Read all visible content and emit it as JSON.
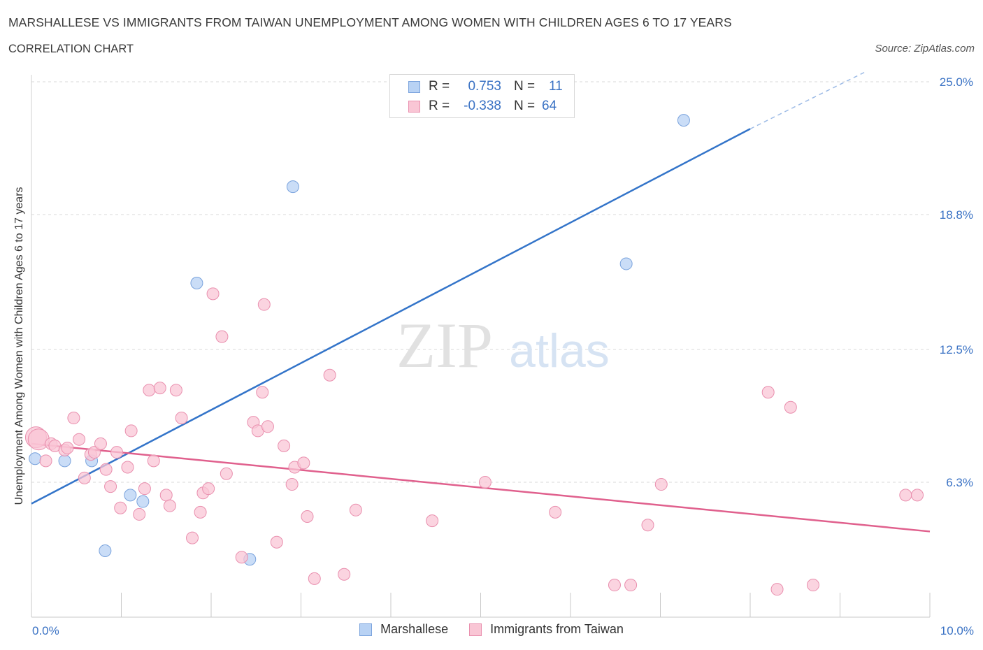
{
  "title": "MARSHALLESE VS IMMIGRANTS FROM TAIWAN UNEMPLOYMENT AMONG WOMEN WITH CHILDREN AGES 6 TO 17 YEARS",
  "subtitle": "CORRELATION CHART",
  "source": "Source: ZipAtlas.com",
  "watermark": {
    "zip": "ZIP",
    "atlas": "atlas"
  },
  "legend_box": {
    "rows": [
      {
        "r_label": "R =",
        "r_value": "0.753",
        "n_label": "N =",
        "n_value": "11",
        "color": "#b8d2f4",
        "border": "#7aa3dd"
      },
      {
        "r_label": "R =",
        "r_value": "-0.338",
        "n_label": "N =",
        "n_value": "64",
        "color": "#f9c6d5",
        "border": "#e98fae"
      }
    ]
  },
  "chart_data": {
    "type": "scatter",
    "ylabel": "Unemployment Among Women with Children Ages 6 to 17 years",
    "x_tick_labels": [
      "0.0%",
      "10.0%"
    ],
    "y_tick_labels": [
      "6.3%",
      "12.5%",
      "18.8%",
      "25.0%"
    ],
    "y_ticks": [
      6.3,
      12.5,
      18.8,
      25.0
    ],
    "xlim": [
      0,
      10
    ],
    "ylim": [
      0,
      25
    ],
    "grid": "horizontal dashed",
    "legend": "bottom-center",
    "series": [
      {
        "name": "Marshallese",
        "color": "#b8d2f4",
        "line_color": "#3374c9",
        "trend": {
          "x": [
            0,
            8.0
          ],
          "y": [
            5.3,
            22.8
          ],
          "dashed_to": [
            8.0,
            22.8,
            9.3,
            25.5
          ]
        },
        "points": [
          {
            "x": 0.04,
            "y": 7.4
          },
          {
            "x": 0.37,
            "y": 7.3
          },
          {
            "x": 0.67,
            "y": 7.3
          },
          {
            "x": 0.82,
            "y": 3.1
          },
          {
            "x": 1.1,
            "y": 5.7
          },
          {
            "x": 1.24,
            "y": 5.4
          },
          {
            "x": 1.84,
            "y": 15.6
          },
          {
            "x": 2.43,
            "y": 2.7
          },
          {
            "x": 2.91,
            "y": 20.1
          },
          {
            "x": 6.62,
            "y": 16.5
          },
          {
            "x": 7.26,
            "y": 23.2
          }
        ]
      },
      {
        "name": "Immigrants from Taiwan",
        "color": "#f9c6d5",
        "line_color": "#e0608d",
        "trend": {
          "x": [
            0,
            10
          ],
          "y": [
            8.1,
            4.0
          ]
        },
        "points": [
          {
            "x": 0.05,
            "y": 8.4
          },
          {
            "x": 0.08,
            "y": 8.3
          },
          {
            "x": 0.16,
            "y": 7.3
          },
          {
            "x": 0.22,
            "y": 8.1
          },
          {
            "x": 0.26,
            "y": 8.0
          },
          {
            "x": 0.37,
            "y": 7.8
          },
          {
            "x": 0.4,
            "y": 7.9
          },
          {
            "x": 0.47,
            "y": 9.3
          },
          {
            "x": 0.53,
            "y": 8.3
          },
          {
            "x": 0.59,
            "y": 6.5
          },
          {
            "x": 0.66,
            "y": 7.6
          },
          {
            "x": 0.7,
            "y": 7.7
          },
          {
            "x": 0.77,
            "y": 8.1
          },
          {
            "x": 0.83,
            "y": 6.9
          },
          {
            "x": 0.88,
            "y": 6.1
          },
          {
            "x": 0.95,
            "y": 7.7
          },
          {
            "x": 0.99,
            "y": 5.1
          },
          {
            "x": 1.07,
            "y": 7.0
          },
          {
            "x": 1.11,
            "y": 8.7
          },
          {
            "x": 1.2,
            "y": 4.8
          },
          {
            "x": 1.26,
            "y": 6.0
          },
          {
            "x": 1.31,
            "y": 10.6
          },
          {
            "x": 1.36,
            "y": 7.3
          },
          {
            "x": 1.43,
            "y": 10.7
          },
          {
            "x": 1.5,
            "y": 5.7
          },
          {
            "x": 1.54,
            "y": 5.2
          },
          {
            "x": 1.61,
            "y": 10.6
          },
          {
            "x": 1.67,
            "y": 9.3
          },
          {
            "x": 1.79,
            "y": 3.7
          },
          {
            "x": 1.88,
            "y": 4.9
          },
          {
            "x": 1.91,
            "y": 5.8
          },
          {
            "x": 1.97,
            "y": 6.0
          },
          {
            "x": 2.02,
            "y": 15.1
          },
          {
            "x": 2.12,
            "y": 13.1
          },
          {
            "x": 2.17,
            "y": 6.7
          },
          {
            "x": 2.34,
            "y": 2.8
          },
          {
            "x": 2.47,
            "y": 9.1
          },
          {
            "x": 2.52,
            "y": 8.7
          },
          {
            "x": 2.57,
            "y": 10.5
          },
          {
            "x": 2.59,
            "y": 14.6
          },
          {
            "x": 2.63,
            "y": 8.9
          },
          {
            "x": 2.73,
            "y": 3.5
          },
          {
            "x": 2.81,
            "y": 8.0
          },
          {
            "x": 2.9,
            "y": 6.2
          },
          {
            "x": 2.93,
            "y": 7.0
          },
          {
            "x": 3.03,
            "y": 7.2
          },
          {
            "x": 3.07,
            "y": 4.7
          },
          {
            "x": 3.15,
            "y": 1.8
          },
          {
            "x": 3.32,
            "y": 11.3
          },
          {
            "x": 3.48,
            "y": 2.0
          },
          {
            "x": 3.61,
            "y": 5.0
          },
          {
            "x": 4.46,
            "y": 4.5
          },
          {
            "x": 5.05,
            "y": 6.3
          },
          {
            "x": 5.83,
            "y": 4.9
          },
          {
            "x": 6.49,
            "y": 1.5
          },
          {
            "x": 6.67,
            "y": 1.5
          },
          {
            "x": 6.86,
            "y": 4.3
          },
          {
            "x": 7.01,
            "y": 6.2
          },
          {
            "x": 8.2,
            "y": 10.5
          },
          {
            "x": 8.3,
            "y": 1.3
          },
          {
            "x": 8.45,
            "y": 9.8
          },
          {
            "x": 8.7,
            "y": 1.5
          },
          {
            "x": 9.73,
            "y": 5.7
          },
          {
            "x": 9.86,
            "y": 5.7
          }
        ]
      }
    ]
  }
}
